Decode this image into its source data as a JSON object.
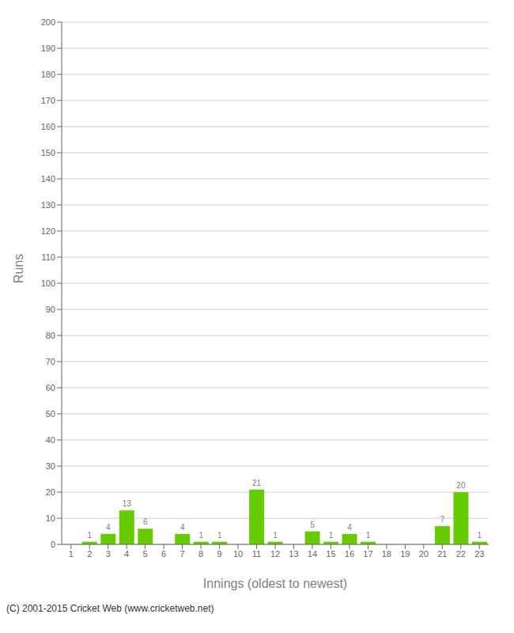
{
  "chart_data": {
    "type": "bar",
    "categories": [
      "1",
      "2",
      "3",
      "4",
      "5",
      "6",
      "7",
      "8",
      "9",
      "10",
      "11",
      "12",
      "13",
      "14",
      "15",
      "16",
      "17",
      "18",
      "19",
      "20",
      "21",
      "22",
      "23"
    ],
    "values": [
      0,
      1,
      4,
      13,
      6,
      0,
      4,
      1,
      1,
      0,
      21,
      1,
      0,
      5,
      1,
      4,
      1,
      0,
      0,
      0,
      7,
      20,
      1
    ],
    "color": "#66cc00",
    "xlabel": "Innings (oldest to newest)",
    "ylabel": "Runs",
    "ylim": [
      0,
      200
    ],
    "yticks": [
      0,
      10,
      20,
      30,
      40,
      50,
      60,
      70,
      80,
      90,
      100,
      110,
      120,
      130,
      140,
      150,
      160,
      170,
      180,
      190,
      200
    ],
    "grid": true,
    "data_labels": true,
    "annotations": [
      "(C) 2001-2015 Cricket Web (www.cricketweb.net)"
    ]
  }
}
